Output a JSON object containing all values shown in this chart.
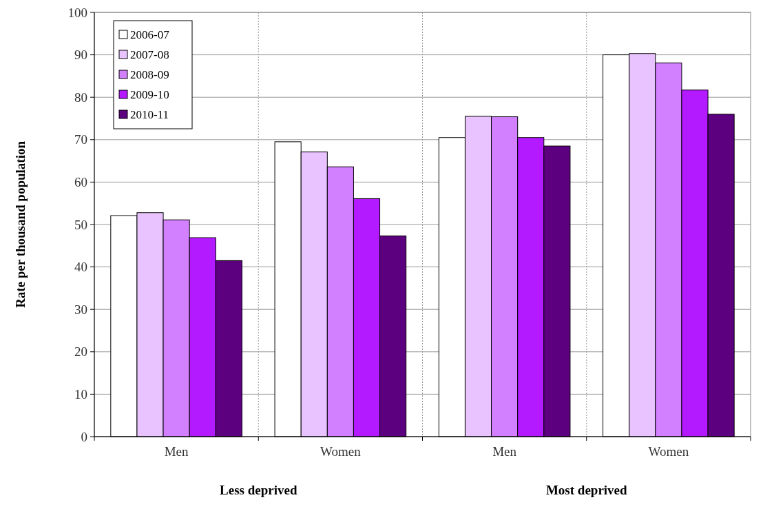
{
  "chart_data": {
    "type": "bar",
    "ylabel": "Rate per thousand population",
    "categories": [
      "Men",
      "Women",
      "Men",
      "Women"
    ],
    "series": [
      {
        "name": "2006-07",
        "color": "#ffffff",
        "values": [
          52.1,
          69.5,
          70.5,
          90.0
        ]
      },
      {
        "name": "2007-08",
        "color": "#e8c3ff",
        "values": [
          52.8,
          67.1,
          75.5,
          90.3
        ]
      },
      {
        "name": "2008-09",
        "color": "#d280ff",
        "values": [
          51.1,
          63.6,
          75.4,
          88.1
        ]
      },
      {
        "name": "2009-10",
        "color": "#b31aff",
        "values": [
          46.9,
          56.1,
          70.5,
          81.7
        ]
      },
      {
        "name": "2010-11",
        "color": "#5c0080",
        "values": [
          41.5,
          47.3,
          68.5,
          76.0
        ]
      }
    ],
    "annotations": [
      "Less deprived",
      "Most deprived"
    ],
    "ylim": [
      0,
      100
    ],
    "yticks": [
      0,
      10,
      20,
      30,
      40,
      50,
      60,
      70,
      80,
      90,
      100
    ],
    "grid": true,
    "legend": "top left"
  }
}
